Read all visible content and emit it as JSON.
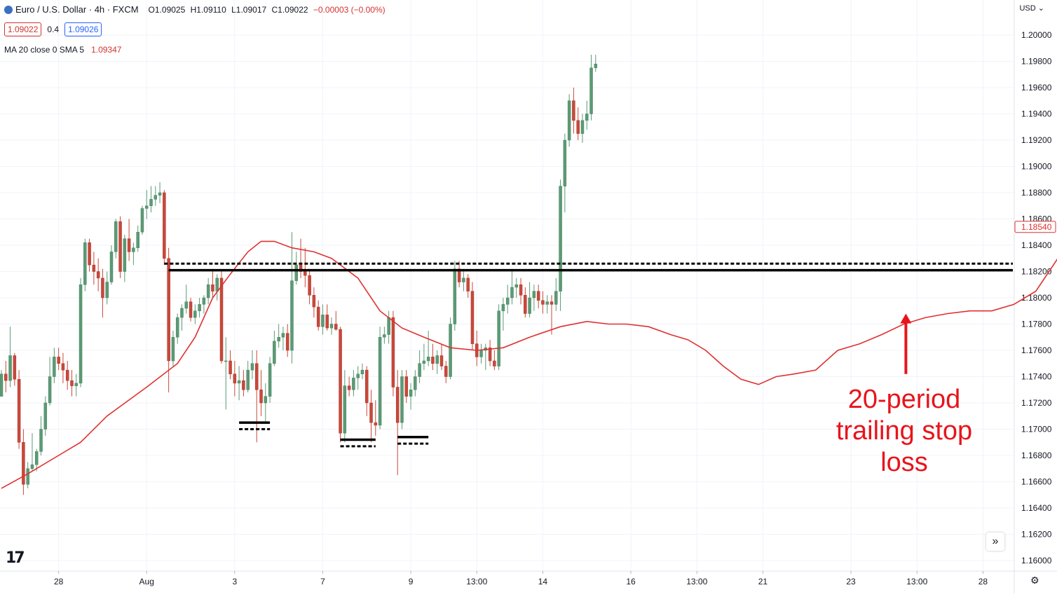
{
  "legend": {
    "title": "Euro / U.S. Dollar · 4h · FXCM",
    "open": "O1.09025",
    "high": "H1.09110",
    "low": "L1.09017",
    "close": "C1.09022",
    "change": "−0.00003 (−0.00%)",
    "bid": "1.09022",
    "spread": "0.4",
    "ask": "1.09026",
    "indicator_label": "MA 20 close 0 SMA 5",
    "indicator_value": "1.09347"
  },
  "currency_menu": "USD",
  "scroll_icon": "»",
  "settings_icon": "⚙",
  "logo_text": "17",
  "annotation": {
    "line1": "20-period",
    "line2": "trailing stop",
    "line3": "loss"
  },
  "colors": {
    "up": "#5b9a75",
    "down": "#c9483a",
    "ma": "#e03030",
    "annotation": "#e8141b",
    "grid": "#f0f3fa",
    "levels": "#000000"
  },
  "chart_data": {
    "type": "candlestick",
    "price_axis": {
      "min": 1.158,
      "max": 1.2025,
      "ticks": [
        1.16,
        1.162,
        1.164,
        1.166,
        1.168,
        1.17,
        1.172,
        1.174,
        1.176,
        1.178,
        1.18,
        1.182,
        1.184,
        1.186,
        1.188,
        1.19,
        1.192,
        1.194,
        1.196,
        1.198,
        1.2
      ],
      "tick_labels": [
        "1.16000",
        "1.16200",
        "1.16400",
        "1.16600",
        "1.16800",
        "1.17000",
        "1.17200",
        "1.17400",
        "1.17600",
        "1.17800",
        "1.18000",
        "1.18200",
        "1.18400",
        "1.18600",
        "1.18800",
        "1.19000",
        "1.19200",
        "1.19400",
        "1.19600",
        "1.19800",
        "1.20000"
      ],
      "last_price_label": "1.18540",
      "last_price": 1.1854
    },
    "time_axis": {
      "labels": [
        {
          "text": "28",
          "bar": 13
        },
        {
          "text": "Aug",
          "bar": 33
        },
        {
          "text": "3",
          "bar": 53
        },
        {
          "text": "7",
          "bar": 73
        },
        {
          "text": "9",
          "bar": 93
        },
        {
          "text": "13:00",
          "bar": 108
        },
        {
          "text": "14",
          "bar": 123
        },
        {
          "text": "16",
          "bar": 143
        },
        {
          "text": "13:00",
          "bar": 158
        },
        {
          "text": "21",
          "bar": 173
        },
        {
          "text": "23",
          "bar": 193
        },
        {
          "text": "13:00",
          "bar": 208
        },
        {
          "text": "28",
          "bar": 223
        }
      ]
    },
    "candles": [
      [
        1.1725,
        1.1745,
        1.1725,
        1.1742
      ],
      [
        1.1742,
        1.1752,
        1.1728,
        1.1737
      ],
      [
        1.1737,
        1.1778,
        1.1732,
        1.1756
      ],
      [
        1.1756,
        1.1758,
        1.1733,
        1.1738
      ],
      [
        1.1738,
        1.1745,
        1.1685,
        1.169
      ],
      [
        1.169,
        1.17,
        1.165,
        1.1658
      ],
      [
        1.1658,
        1.1675,
        1.1655,
        1.167
      ],
      [
        1.167,
        1.1697,
        1.1668,
        1.1673
      ],
      [
        1.1673,
        1.1685,
        1.1668,
        1.1683
      ],
      [
        1.1683,
        1.171,
        1.168,
        1.17
      ],
      [
        1.17,
        1.1725,
        1.1695,
        1.172
      ],
      [
        1.172,
        1.1755,
        1.1718,
        1.174
      ],
      [
        1.174,
        1.1762,
        1.1735,
        1.1755
      ],
      [
        1.1755,
        1.1762,
        1.1745,
        1.175
      ],
      [
        1.175,
        1.1758,
        1.1735,
        1.1745
      ],
      [
        1.1745,
        1.1752,
        1.173,
        1.1737
      ],
      [
        1.1737,
        1.1745,
        1.1725,
        1.1733
      ],
      [
        1.1733,
        1.1742,
        1.1725,
        1.1735
      ],
      [
        1.1735,
        1.1815,
        1.1732,
        1.181
      ],
      [
        1.181,
        1.1845,
        1.1805,
        1.1842
      ],
      [
        1.1842,
        1.1845,
        1.182,
        1.1825
      ],
      [
        1.1825,
        1.1835,
        1.181,
        1.182
      ],
      [
        1.182,
        1.183,
        1.1805,
        1.1815
      ],
      [
        1.1815,
        1.1822,
        1.1785,
        1.18
      ],
      [
        1.18,
        1.182,
        1.1795,
        1.1812
      ],
      [
        1.1812,
        1.184,
        1.181,
        1.1835
      ],
      [
        1.1835,
        1.186,
        1.183,
        1.1858
      ],
      [
        1.1858,
        1.1862,
        1.1815,
        1.182
      ],
      [
        1.182,
        1.1848,
        1.1812,
        1.1845
      ],
      [
        1.1845,
        1.186,
        1.1828,
        1.1835
      ],
      [
        1.1835,
        1.1842,
        1.1825,
        1.1838
      ],
      [
        1.1838,
        1.1855,
        1.1835,
        1.185
      ],
      [
        1.185,
        1.187,
        1.1848,
        1.1868
      ],
      [
        1.1868,
        1.1882,
        1.186,
        1.187
      ],
      [
        1.187,
        1.1885,
        1.1865,
        1.1875
      ],
      [
        1.1875,
        1.1885,
        1.187,
        1.1878
      ],
      [
        1.1878,
        1.1888,
        1.1872,
        1.188
      ],
      [
        1.188,
        1.1882,
        1.1825,
        1.183
      ],
      [
        1.183,
        1.1838,
        1.1728,
        1.1752
      ],
      [
        1.1752,
        1.1775,
        1.1748,
        1.177
      ],
      [
        1.177,
        1.1788,
        1.1765,
        1.1785
      ],
      [
        1.1785,
        1.1795,
        1.1775,
        1.1792
      ],
      [
        1.1792,
        1.181,
        1.1788,
        1.1797
      ],
      [
        1.1797,
        1.18,
        1.1782,
        1.1785
      ],
      [
        1.1785,
        1.1795,
        1.178,
        1.179
      ],
      [
        1.179,
        1.18,
        1.1785,
        1.1795
      ],
      [
        1.1795,
        1.1802,
        1.1788,
        1.18
      ],
      [
        1.18,
        1.1815,
        1.1795,
        1.181
      ],
      [
        1.181,
        1.1822,
        1.18,
        1.1805
      ],
      [
        1.1805,
        1.1818,
        1.1798,
        1.1815
      ],
      [
        1.1815,
        1.182,
        1.175,
        1.1752
      ],
      [
        1.1752,
        1.177,
        1.1715,
        1.1752
      ],
      [
        1.1752,
        1.176,
        1.1738,
        1.1742
      ],
      [
        1.1742,
        1.1752,
        1.1725,
        1.1735
      ],
      [
        1.1735,
        1.1748,
        1.1722,
        1.1737
      ],
      [
        1.1737,
        1.1745,
        1.1725,
        1.173
      ],
      [
        1.173,
        1.1752,
        1.1728,
        1.1745
      ],
      [
        1.1745,
        1.176,
        1.1738,
        1.175
      ],
      [
        1.175,
        1.176,
        1.169,
        1.173
      ],
      [
        1.173,
        1.1745,
        1.171,
        1.172
      ],
      [
        1.172,
        1.1735,
        1.1705,
        1.1725
      ],
      [
        1.1725,
        1.1755,
        1.172,
        1.175
      ],
      [
        1.175,
        1.1775,
        1.1748,
        1.1767
      ],
      [
        1.1767,
        1.178,
        1.1762,
        1.177
      ],
      [
        1.177,
        1.1778,
        1.176,
        1.1773
      ],
      [
        1.1773,
        1.178,
        1.1755,
        1.176
      ],
      [
        1.176,
        1.185,
        1.175,
        1.1813
      ],
      [
        1.1813,
        1.1835,
        1.181,
        1.1825
      ],
      [
        1.1825,
        1.1845,
        1.1815,
        1.182
      ],
      [
        1.182,
        1.1838,
        1.1808,
        1.1817
      ],
      [
        1.1817,
        1.1822,
        1.1795,
        1.1802
      ],
      [
        1.1802,
        1.1808,
        1.1785,
        1.1793
      ],
      [
        1.1793,
        1.1798,
        1.1775,
        1.1778
      ],
      [
        1.1778,
        1.1795,
        1.1772,
        1.1787
      ],
      [
        1.1787,
        1.1795,
        1.1775,
        1.1777
      ],
      [
        1.1777,
        1.1785,
        1.1772,
        1.178
      ],
      [
        1.178,
        1.179,
        1.1775,
        1.1776
      ],
      [
        1.1776,
        1.1778,
        1.169,
        1.1697
      ],
      [
        1.1697,
        1.1745,
        1.169,
        1.1733
      ],
      [
        1.1733,
        1.174,
        1.1725,
        1.173
      ],
      [
        1.173,
        1.1745,
        1.1725,
        1.1739
      ],
      [
        1.1739,
        1.1748,
        1.173,
        1.1742
      ],
      [
        1.1742,
        1.175,
        1.1738,
        1.1745
      ],
      [
        1.1745,
        1.1748,
        1.171,
        1.172
      ],
      [
        1.172,
        1.173,
        1.169,
        1.1705
      ],
      [
        1.1705,
        1.1722,
        1.1695,
        1.1703
      ],
      [
        1.1703,
        1.1778,
        1.17,
        1.177
      ],
      [
        1.177,
        1.1778,
        1.1765,
        1.1772
      ],
      [
        1.1772,
        1.179,
        1.1765,
        1.1785
      ],
      [
        1.1785,
        1.179,
        1.1725,
        1.1732
      ],
      [
        1.1732,
        1.1745,
        1.1665,
        1.1705
      ],
      [
        1.1705,
        1.1745,
        1.17,
        1.174
      ],
      [
        1.174,
        1.1745,
        1.172,
        1.1725
      ],
      [
        1.1725,
        1.1735,
        1.1715,
        1.173
      ],
      [
        1.173,
        1.1745,
        1.1725,
        1.174
      ],
      [
        1.174,
        1.176,
        1.1735,
        1.175
      ],
      [
        1.175,
        1.1765,
        1.1745,
        1.1752
      ],
      [
        1.1752,
        1.1775,
        1.1748,
        1.1755
      ],
      [
        1.1755,
        1.1765,
        1.1745,
        1.175
      ],
      [
        1.175,
        1.176,
        1.1742,
        1.1756
      ],
      [
        1.1756,
        1.1765,
        1.1745,
        1.1748
      ],
      [
        1.1748,
        1.1752,
        1.1735,
        1.174
      ],
      [
        1.174,
        1.1785,
        1.1738,
        1.178
      ],
      [
        1.178,
        1.1828,
        1.1775,
        1.1822
      ],
      [
        1.1822,
        1.1828,
        1.1808,
        1.1812
      ],
      [
        1.1812,
        1.182,
        1.1805,
        1.1815
      ],
      [
        1.1815,
        1.1818,
        1.18,
        1.1805
      ],
      [
        1.1805,
        1.1812,
        1.176,
        1.1765
      ],
      [
        1.1765,
        1.1775,
        1.1748,
        1.1755
      ],
      [
        1.1755,
        1.1765,
        1.175,
        1.176
      ],
      [
        1.176,
        1.1765,
        1.1745,
        1.1762
      ],
      [
        1.1762,
        1.1768,
        1.1748,
        1.1752
      ],
      [
        1.1752,
        1.176,
        1.1745,
        1.1748
      ],
      [
        1.1748,
        1.1795,
        1.1745,
        1.179
      ],
      [
        1.179,
        1.18,
        1.1775,
        1.1795
      ],
      [
        1.1795,
        1.181,
        1.1788,
        1.18
      ],
      [
        1.18,
        1.1822,
        1.1795,
        1.1808
      ],
      [
        1.1808,
        1.1815,
        1.18,
        1.181
      ],
      [
        1.181,
        1.1815,
        1.1795,
        1.1802
      ],
      [
        1.1802,
        1.1808,
        1.1785,
        1.1788
      ],
      [
        1.1788,
        1.1812,
        1.1785,
        1.18
      ],
      [
        1.18,
        1.181,
        1.179,
        1.1805
      ],
      [
        1.1805,
        1.181,
        1.1792,
        1.1798
      ],
      [
        1.1798,
        1.1805,
        1.1788,
        1.1795
      ],
      [
        1.1795,
        1.1802,
        1.1788,
        1.1797
      ],
      [
        1.1797,
        1.1802,
        1.1772,
        1.1795
      ],
      [
        1.1795,
        1.1815,
        1.179,
        1.1805
      ],
      [
        1.1805,
        1.189,
        1.179,
        1.1885
      ],
      [
        1.1885,
        1.1925,
        1.1865,
        1.192
      ],
      [
        1.192,
        1.1955,
        1.1915,
        1.195
      ],
      [
        1.195,
        1.196,
        1.1925,
        1.1935
      ],
      [
        1.1935,
        1.1945,
        1.192,
        1.1925
      ],
      [
        1.1925,
        1.194,
        1.1918,
        1.1935
      ],
      [
        1.1935,
        1.195,
        1.1928,
        1.194
      ],
      [
        1.194,
        1.1985,
        1.1935,
        1.1975
      ],
      [
        1.1975,
        1.1985,
        1.1972,
        1.1978
      ]
    ],
    "ma_line": {
      "label": "MA 20 close 0 SMA 5",
      "points": [
        [
          0,
          1.1655
        ],
        [
          6,
          1.1666
        ],
        [
          13,
          1.168
        ],
        [
          18,
          1.169
        ],
        [
          24,
          1.171
        ],
        [
          33,
          1.1732
        ],
        [
          40,
          1.175
        ],
        [
          44,
          1.177
        ],
        [
          48,
          1.18
        ],
        [
          52,
          1.1818
        ],
        [
          56,
          1.1835
        ],
        [
          59,
          1.1843
        ],
        [
          62,
          1.1843
        ],
        [
          66,
          1.1838
        ],
        [
          71,
          1.1835
        ],
        [
          75,
          1.183
        ],
        [
          81,
          1.1815
        ],
        [
          86,
          1.179
        ],
        [
          91,
          1.1777
        ],
        [
          96,
          1.177
        ],
        [
          102,
          1.1762
        ],
        [
          108,
          1.176
        ],
        [
          114,
          1.1762
        ],
        [
          120,
          1.177
        ],
        [
          127,
          1.1778
        ],
        [
          133,
          1.1782
        ],
        [
          138,
          1.178
        ],
        [
          142,
          1.178
        ],
        [
          147,
          1.1778
        ],
        [
          152,
          1.1772
        ],
        [
          156,
          1.1768
        ],
        [
          160,
          1.176
        ],
        [
          164,
          1.1748
        ],
        [
          168,
          1.1738
        ],
        [
          172,
          1.1734
        ],
        [
          176,
          1.174
        ],
        [
          180,
          1.1742
        ],
        [
          185,
          1.1745
        ],
        [
          190,
          1.176
        ],
        [
          195,
          1.1765
        ],
        [
          200,
          1.1772
        ],
        [
          205,
          1.178
        ],
        [
          210,
          1.1785
        ],
        [
          215,
          1.1788
        ],
        [
          220,
          1.179
        ],
        [
          225,
          1.179
        ],
        [
          230,
          1.1795
        ],
        [
          235,
          1.1805
        ],
        [
          240,
          1.183
        ],
        [
          245,
          1.1855
        ]
      ]
    },
    "horizontal_levels": [
      {
        "style": "dashed",
        "price": 1.1826,
        "from_bar": 37,
        "to_bar": 239
      },
      {
        "style": "solid",
        "price": 1.1821,
        "from_bar": 38,
        "to_bar": 239
      },
      {
        "style": "solid",
        "price": 1.1705,
        "from_bar": 54,
        "to_bar": 61
      },
      {
        "style": "dashed",
        "price": 1.17,
        "from_bar": 54,
        "to_bar": 61
      },
      {
        "style": "solid",
        "price": 1.1692,
        "from_bar": 77,
        "to_bar": 85
      },
      {
        "style": "dashed",
        "price": 1.1687,
        "from_bar": 77,
        "to_bar": 85
      },
      {
        "style": "solid",
        "price": 1.1694,
        "from_bar": 90,
        "to_bar": 97
      },
      {
        "style": "dashed",
        "price": 1.1689,
        "from_bar": 90,
        "to_bar": 97
      }
    ]
  }
}
